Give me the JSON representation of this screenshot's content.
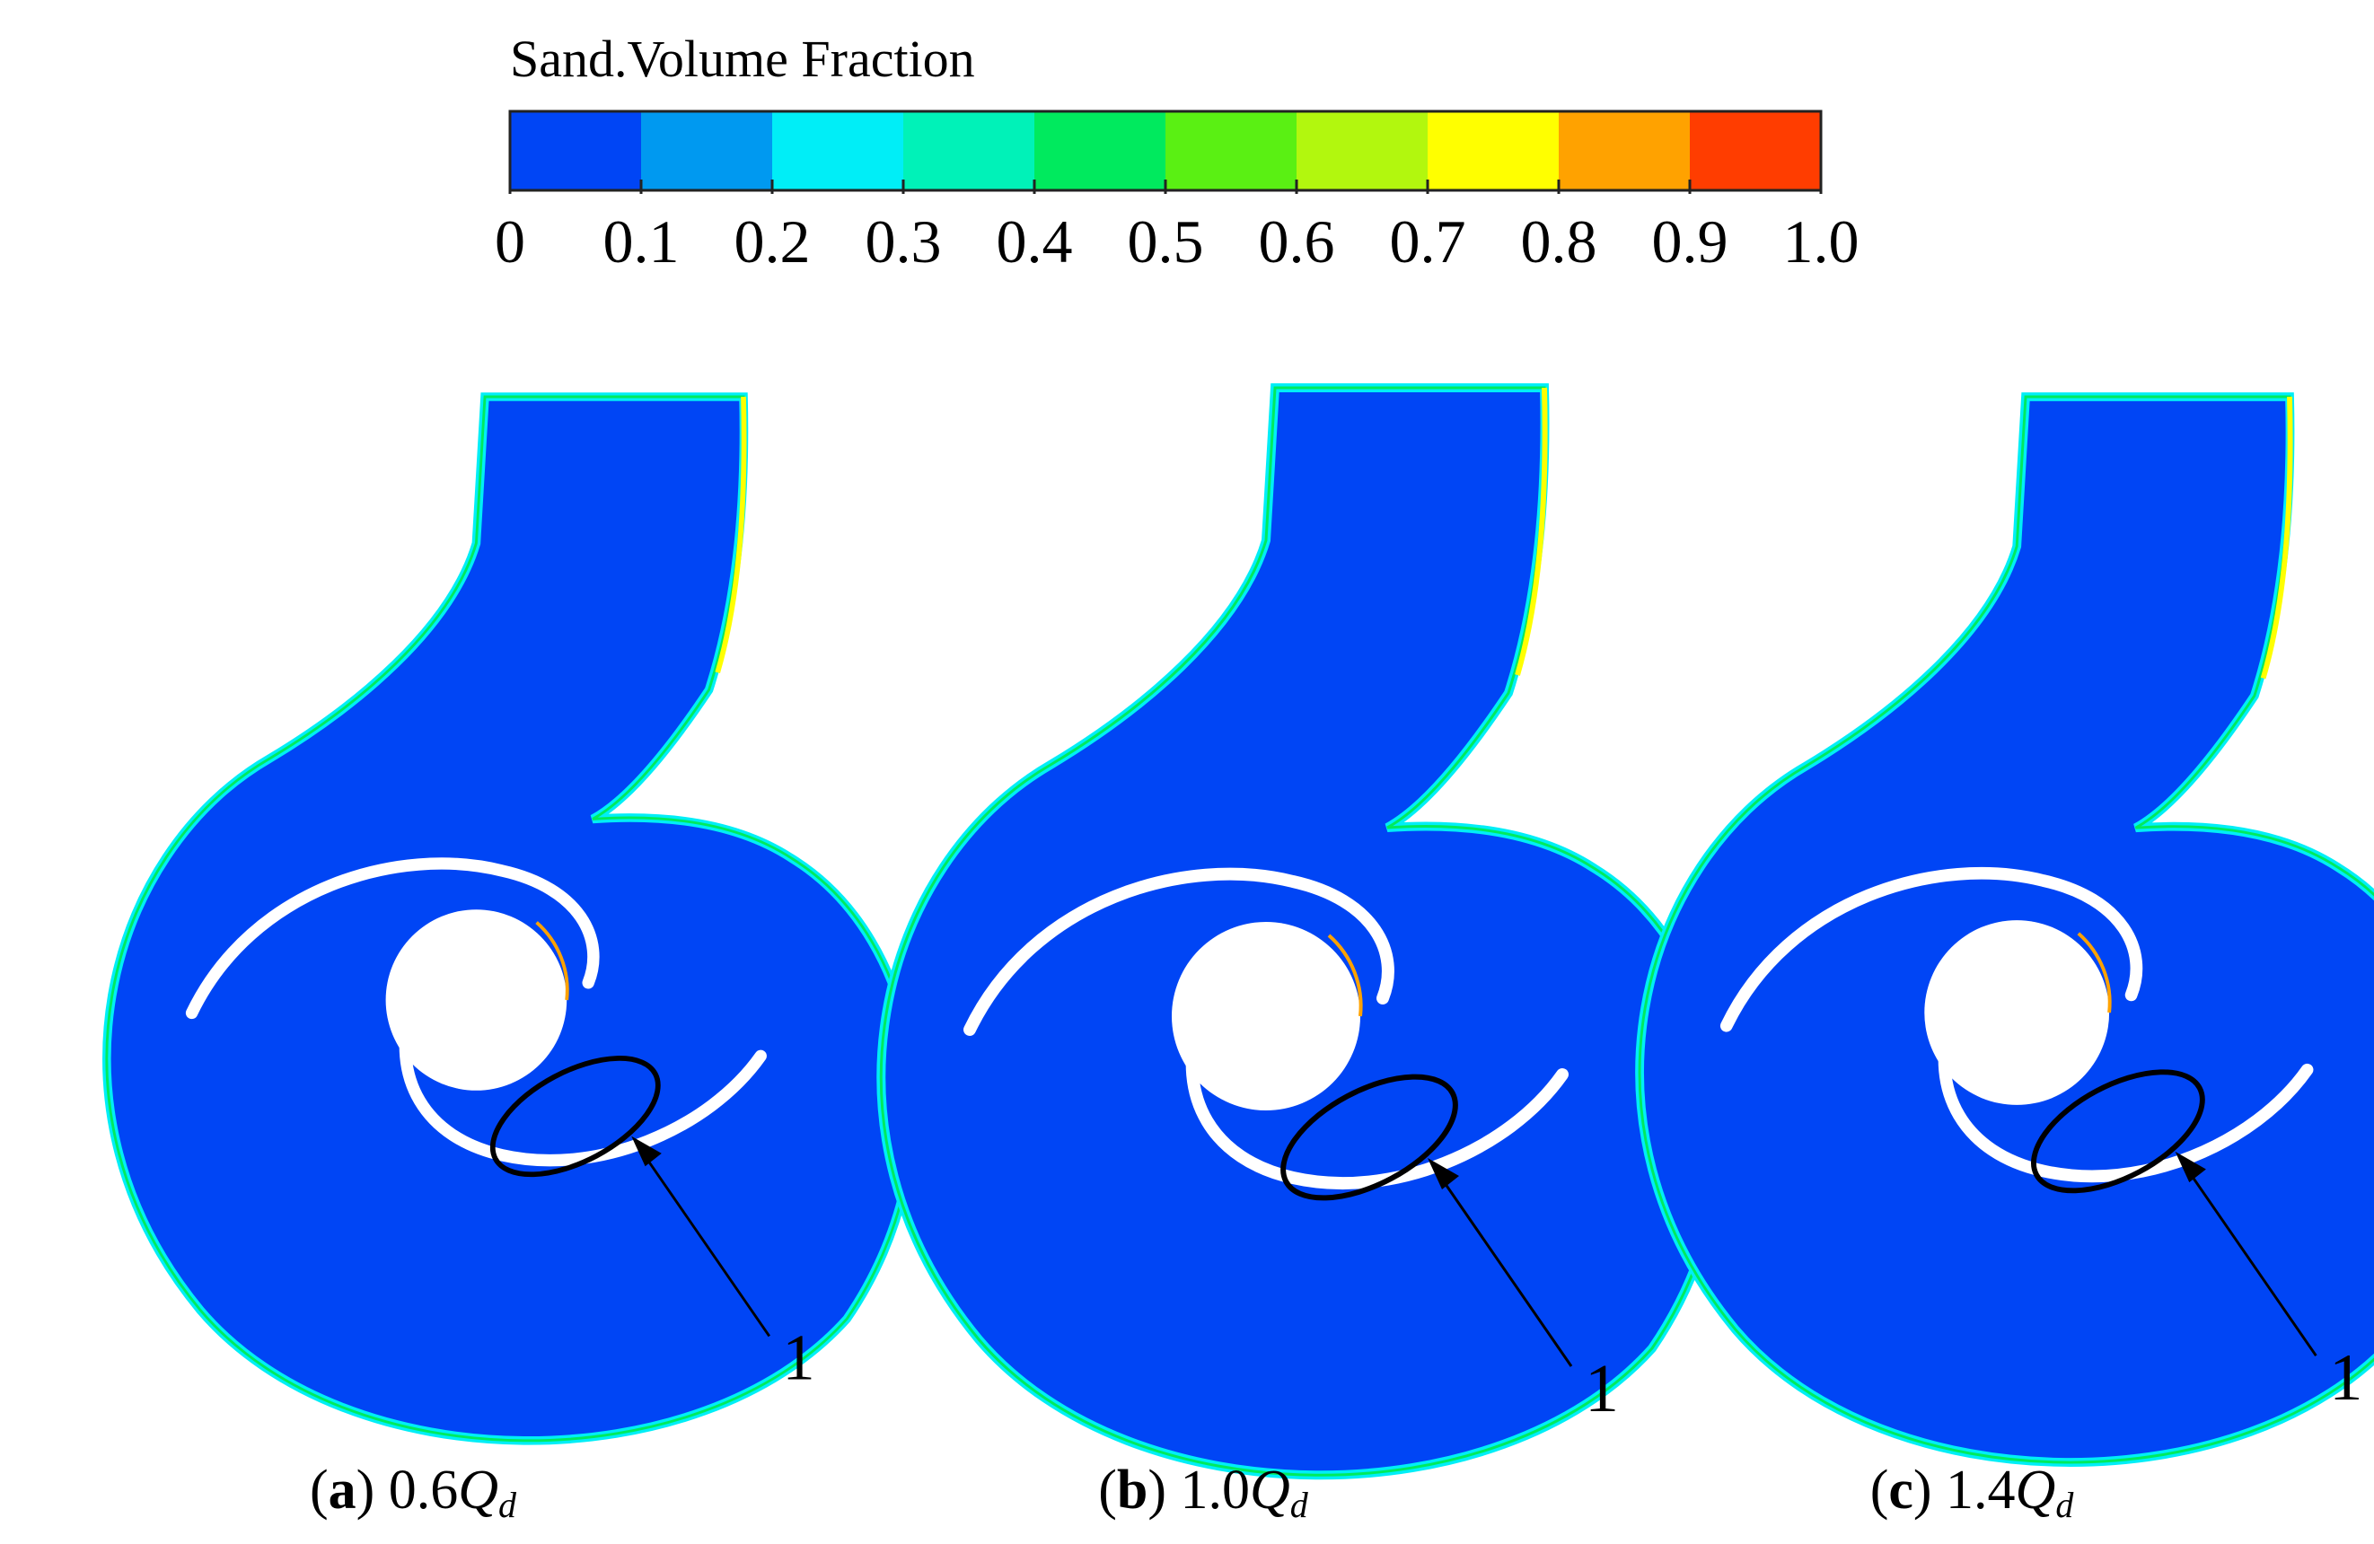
{
  "colorbar": {
    "title": "Sand.Volume Fraction",
    "colors": [
      "#0045f5",
      "#0099f0",
      "#00eef7",
      "#00f2b8",
      "#00ea5e",
      "#5af013",
      "#b2f70e",
      "#ffff00",
      "#ffa200",
      "#ff3d00"
    ],
    "ticks": [
      "0",
      "0.1",
      "0.2",
      "0.3",
      "0.4",
      "0.5",
      "0.6",
      "0.7",
      "0.8",
      "0.9",
      "1.0"
    ]
  },
  "field_colors": {
    "background": "#0045f5",
    "low": "#0099f0",
    "mid": "#00eef7",
    "green": "#00ea5e",
    "yellow": "#ffff00",
    "orange": "#ffa200",
    "blade": "#ffffff"
  },
  "panels": [
    {
      "letter": "a",
      "value": "0.6",
      "symbol": "Q",
      "subscript": "d",
      "marker": "1"
    },
    {
      "letter": "b",
      "value": "1.0",
      "symbol": "Q",
      "subscript": "d",
      "marker": "1"
    },
    {
      "letter": "c",
      "value": "1.4",
      "symbol": "Q",
      "subscript": "d",
      "marker": "1"
    }
  ]
}
